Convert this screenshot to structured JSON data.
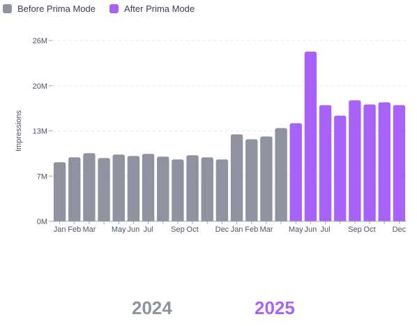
{
  "legend": {
    "before_label": "Before Prima Mode",
    "after_label": "After Prima Mode"
  },
  "colors": {
    "before": "#8f939f",
    "after": "#a862f7",
    "grid": "#e5e7eb",
    "axis_text": "#4b5563"
  },
  "years": {
    "left": "2024",
    "right": "2025"
  },
  "chart_data": {
    "type": "bar",
    "ylabel": "Impressions",
    "xlabel": "",
    "ylim": [
      0,
      26
    ],
    "yticks": [
      {
        "value": 0,
        "label": "0M"
      },
      {
        "value": 6.5,
        "label": "7M"
      },
      {
        "value": 13,
        "label": "13M"
      },
      {
        "value": 19.5,
        "label": "20M"
      },
      {
        "value": 26,
        "label": "26M"
      }
    ],
    "grid": "horizontal dashed",
    "legend_position": "top-left",
    "bars": [
      {
        "label": "Jan",
        "value": 8.5,
        "group": "before"
      },
      {
        "label": "Feb",
        "value": 9.2,
        "group": "before"
      },
      {
        "label": "Mar",
        "value": 9.8,
        "group": "before"
      },
      {
        "label": "",
        "value": 9.1,
        "group": "before"
      },
      {
        "label": "May",
        "value": 9.6,
        "group": "before"
      },
      {
        "label": "Jun",
        "value": 9.4,
        "group": "before"
      },
      {
        "label": "Jul",
        "value": 9.7,
        "group": "before"
      },
      {
        "label": "",
        "value": 9.3,
        "group": "before"
      },
      {
        "label": "Sep",
        "value": 8.9,
        "group": "before"
      },
      {
        "label": "Oct",
        "value": 9.5,
        "group": "before"
      },
      {
        "label": "",
        "value": 9.2,
        "group": "before"
      },
      {
        "label": "Dec",
        "value": 8.9,
        "group": "before"
      },
      {
        "label": "Jan",
        "value": 12.5,
        "group": "before"
      },
      {
        "label": "Feb",
        "value": 11.8,
        "group": "before"
      },
      {
        "label": "Mar",
        "value": 12.2,
        "group": "before"
      },
      {
        "label": "",
        "value": 13.4,
        "group": "before"
      },
      {
        "label": "May",
        "value": 14.1,
        "group": "after"
      },
      {
        "label": "Jun",
        "value": 24.4,
        "group": "after"
      },
      {
        "label": "Jul",
        "value": 16.7,
        "group": "after"
      },
      {
        "label": "",
        "value": 15.2,
        "group": "after"
      },
      {
        "label": "Sep",
        "value": 17.4,
        "group": "after"
      },
      {
        "label": "Oct",
        "value": 16.8,
        "group": "after"
      },
      {
        "label": "",
        "value": 17.1,
        "group": "after"
      },
      {
        "label": "Dec",
        "value": 16.7,
        "group": "after"
      }
    ]
  }
}
